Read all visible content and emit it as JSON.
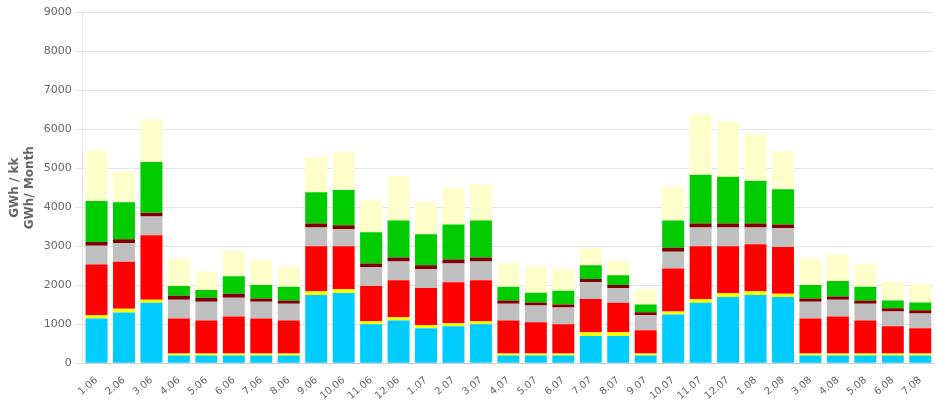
{
  "chart_data": {
    "type": "bar",
    "stacked": true,
    "grid": true,
    "ylabel": [
      "GWh / kk",
      "GWh/ Month"
    ],
    "categories": [
      "1.06",
      "2.06",
      "3.06",
      "4.06",
      "5.06",
      "6.06",
      "7.06",
      "8.06",
      "9.06",
      "10.06",
      "11.06",
      "12.06",
      "1.07",
      "2.07",
      "3.07",
      "4.07",
      "5.07",
      "6.07",
      "7.07",
      "8.07",
      "9.07",
      "10.07",
      "11.07",
      "12.07",
      "1.08",
      "2.08",
      "3.08",
      "4.08",
      "5.08",
      "6.08",
      "7.08"
    ],
    "series": [
      {
        "color": "#00CCFF",
        "values": [
          1150,
          1300,
          1550,
          200,
          200,
          200,
          200,
          200,
          1750,
          1800,
          1000,
          1100,
          900,
          950,
          1000,
          200,
          200,
          200,
          700,
          700,
          200,
          1250,
          1550,
          1700,
          1750,
          1700,
          200,
          200,
          200,
          200,
          200
        ]
      },
      {
        "color": "#FFFF00",
        "values": [
          80,
          100,
          80,
          50,
          50,
          50,
          50,
          50,
          100,
          100,
          80,
          80,
          80,
          80,
          80,
          50,
          50,
          50,
          100,
          100,
          50,
          80,
          100,
          100,
          100,
          80,
          50,
          50,
          50,
          50,
          50
        ]
      },
      {
        "color": "#FF0000",
        "values": [
          1300,
          1200,
          1650,
          900,
          850,
          950,
          900,
          850,
          1150,
          1100,
          900,
          950,
          950,
          1050,
          1050,
          850,
          800,
          750,
          850,
          750,
          600,
          1100,
          1350,
          1200,
          1200,
          1200,
          900,
          950,
          850,
          700,
          650
        ]
      },
      {
        "color": "#C0C0C0",
        "values": [
          480,
          480,
          480,
          480,
          480,
          480,
          430,
          430,
          480,
          440,
          480,
          480,
          480,
          480,
          480,
          430,
          430,
          430,
          430,
          380,
          380,
          430,
          480,
          480,
          430,
          480,
          430,
          430,
          430,
          380,
          380
        ]
      },
      {
        "color": "#800000",
        "values": [
          100,
          100,
          100,
          100,
          100,
          100,
          80,
          80,
          100,
          100,
          100,
          100,
          100,
          100,
          100,
          80,
          80,
          80,
          80,
          80,
          80,
          100,
          100,
          100,
          100,
          100,
          80,
          80,
          80,
          80,
          80
        ]
      },
      {
        "color": "#00CC00",
        "values": [
          1050,
          950,
          1300,
          250,
          200,
          450,
          350,
          350,
          800,
          900,
          800,
          950,
          800,
          900,
          950,
          350,
          250,
          350,
          350,
          250,
          200,
          700,
          1250,
          1200,
          1100,
          900,
          350,
          400,
          350,
          200,
          200
        ]
      },
      {
        "color": "#FFFFCC",
        "values": [
          1290,
          780,
          1090,
          700,
          470,
          650,
          650,
          520,
          900,
          970,
          820,
          1130,
          830,
          930,
          930,
          630,
          680,
          560,
          450,
          370,
          380,
          870,
          1550,
          1400,
          1190,
          980,
          680,
          680,
          580,
          480,
          480
        ]
      }
    ],
    "ylim": [
      0,
      9000
    ],
    "yticks": [
      0,
      1000,
      2000,
      3000,
      4000,
      5000,
      6000,
      7000,
      8000,
      9000
    ]
  }
}
